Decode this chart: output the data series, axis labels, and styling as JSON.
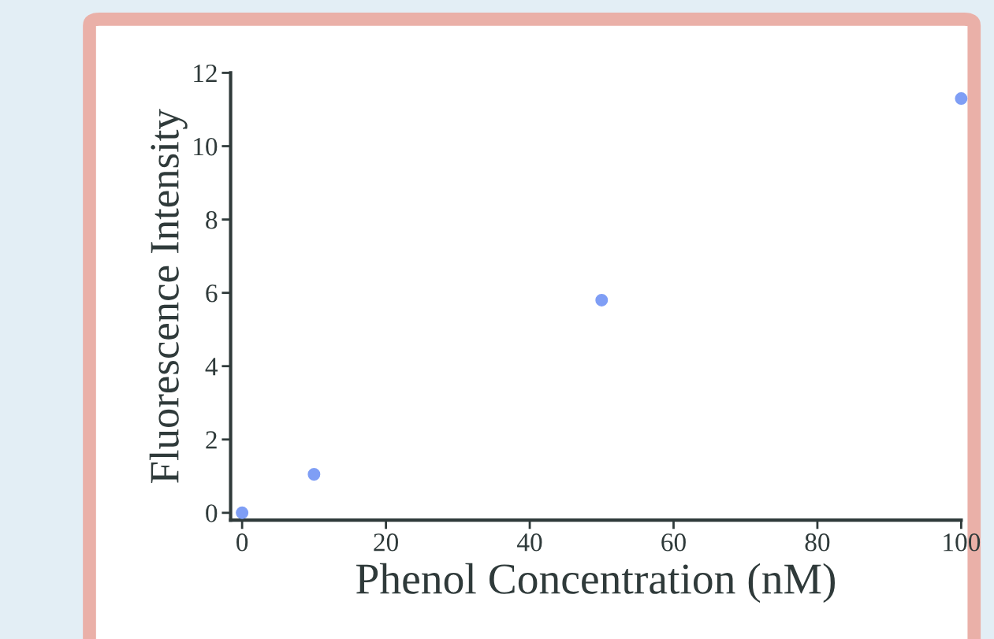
{
  "chart_data": {
    "type": "scatter",
    "xlabel": "Phenol Concentration (nM)",
    "ylabel": "Fluorescence Intensity",
    "x": [
      0,
      10,
      50,
      100
    ],
    "series": [
      {
        "color": "#7f9ef5",
        "values": [
          0,
          1.05,
          5.8,
          11.3
        ]
      }
    ],
    "xlim": [
      -1.6,
      100
    ],
    "ylim": [
      -0.2,
      12
    ],
    "xticks": [
      0,
      20,
      40,
      60,
      80,
      100
    ],
    "yticks": [
      0,
      2,
      4,
      6,
      8,
      10,
      12
    ],
    "grid": false,
    "marker": "circle"
  }
}
